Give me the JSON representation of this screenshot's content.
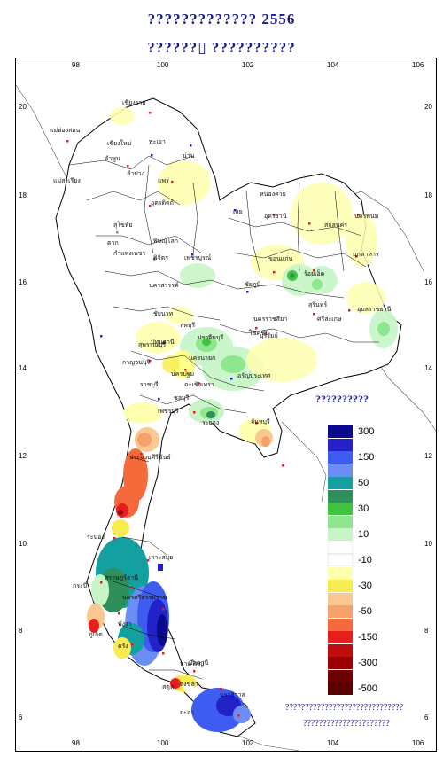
{
  "title": {
    "line1": "????????????? 2556",
    "line2": "??????▯ ??????????"
  },
  "axes": {
    "longitude_ticks": [
      "98",
      "100",
      "102",
      "104",
      "106"
    ],
    "latitude_ticks": [
      "20",
      "18",
      "16",
      "14",
      "12",
      "10",
      "8",
      "6"
    ]
  },
  "legend": {
    "title": "??????????",
    "items": [
      {
        "label": "300",
        "color": "#0a0a8c"
      },
      {
        "label": "",
        "color": "#2222c8"
      },
      {
        "label": "150",
        "color": "#3e5cf0"
      },
      {
        "label": "",
        "color": "#6c8cf6"
      },
      {
        "label": "50",
        "color": "#14a0a0"
      },
      {
        "label": "",
        "color": "#2f8f5a"
      },
      {
        "label": "30",
        "color": "#3ec43e"
      },
      {
        "label": "",
        "color": "#8ee68e"
      },
      {
        "label": "10",
        "color": "#c8f5c8"
      },
      {
        "label": "",
        "color": "#ffffff"
      },
      {
        "label": "-10",
        "color": "#ffffff"
      },
      {
        "label": "",
        "color": "#ffffb0"
      },
      {
        "label": "-30",
        "color": "#f8ec50"
      },
      {
        "label": "",
        "color": "#fac890"
      },
      {
        "label": "-50",
        "color": "#f7a06a"
      },
      {
        "label": "",
        "color": "#f46a3a"
      },
      {
        "label": "-150",
        "color": "#e81e1e"
      },
      {
        "label": "",
        "color": "#c00c0c"
      },
      {
        "label": "-300",
        "color": "#9a0000"
      },
      {
        "label": "",
        "color": "#6a0000"
      },
      {
        "label": "-500",
        "color": "#5a0000"
      }
    ]
  },
  "provinces": [
    "เชียงราย",
    "แม่ฮ่องสอน",
    "เชียงใหม่",
    "พะเยา",
    "น่าน",
    "ลำพูน",
    "ลำปาง",
    "แพร่",
    "อุตรดิตถ์",
    "แม่สะเรียง",
    "ตาก",
    "สุโขทัย",
    "พิษณุโลก",
    "กำแพงเพชร",
    "พิจิตร",
    "เพชรบูรณ์",
    "เลย",
    "หนองคาย",
    "อุดรธานี",
    "สกลนคร",
    "นครพนม",
    "มุกดาหาร",
    "ขอนแก่น",
    "ร้อยเอ็ด",
    "ชัยภูมิ",
    "นครสวรรค์",
    "ชัยนาท",
    "ลพบุรี",
    "สุรินทร์",
    "อุบลราชธานี",
    "นครราชสีมา",
    "ศรีสะเกษ",
    "บุรีรัมย์",
    "โชคชัย",
    "กาญจนบุรี",
    "ปทุมธานี",
    "ปราจีนบุรี",
    "อรัญประเทศ",
    "ราชบุรี",
    "ฉะเชิงเทรา",
    "ชลบุรี",
    "ระยอง",
    "จันทบุรี",
    "เพชรบุรี",
    "ประจวบคีรีขันธ์",
    "ระนอง",
    "สุราษฎร์ธานี",
    "กระบี่",
    "พังงา",
    "ภูเก็ต",
    "นครศรีธรรมราช",
    "ตรัง",
    "สงขลา",
    "หาดใหญ่",
    "สตูล",
    "ปัตตานี",
    "นราธิวาส",
    "เกาะสมุย",
    "ยะลา",
    "สุพรรณบุรี",
    "นครนายก",
    "นครปฐม"
  ],
  "footnote": {
    "line1": "??????????????????????????????",
    "line2": "??????????????????????"
  }
}
